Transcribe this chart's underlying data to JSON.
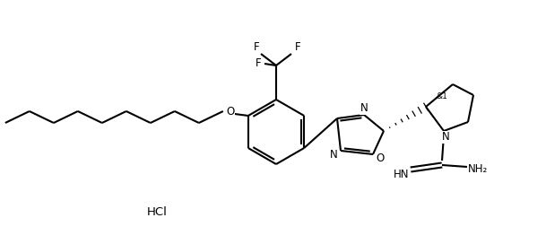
{
  "background_color": "#ffffff",
  "line_color": "#000000",
  "line_width": 1.5,
  "font_size": 8.5,
  "hcl_label": "HCl",
  "stereo_label": "&1",
  "nh2_label": "NH₂",
  "inh_label": "HN",
  "n_label": "N",
  "o_label": "O",
  "f_label": "F"
}
